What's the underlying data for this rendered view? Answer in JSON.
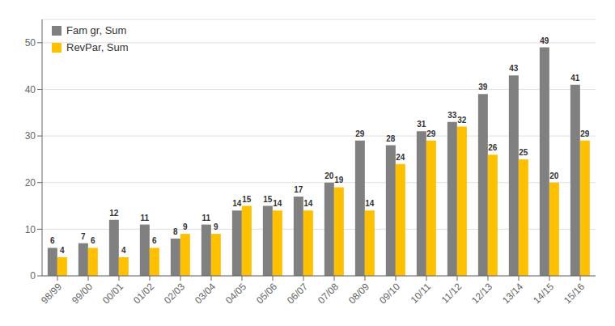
{
  "chart_data": {
    "type": "bar",
    "categories": [
      "98/99",
      "99/00",
      "00/01",
      "01/02",
      "02/03",
      "03/04",
      "04/05",
      "05/06",
      "06/07",
      "07/08",
      "08/09",
      "09/10",
      "10/11",
      "11/12",
      "12/13",
      "13/14",
      "14/15",
      "15/16"
    ],
    "series": [
      {
        "name": "Fam gr, Sum",
        "color": "#808080",
        "values": [
          6,
          7,
          12,
          11,
          8,
          11,
          14,
          15,
          17,
          20,
          29,
          28,
          31,
          33,
          39,
          43,
          49,
          41
        ]
      },
      {
        "name": "RevPar, Sum",
        "color": "#FFC000",
        "values": [
          4,
          6,
          4,
          6,
          9,
          9,
          15,
          14,
          14,
          19,
          14,
          24,
          29,
          32,
          26,
          25,
          20,
          29
        ]
      }
    ],
    "ylim": [
      0,
      55
    ],
    "yticks": [
      0,
      10,
      20,
      30,
      40,
      50
    ],
    "grid": true,
    "legend": "upper left",
    "data_labels": true
  }
}
